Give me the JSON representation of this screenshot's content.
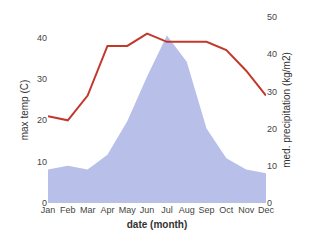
{
  "chart_data": {
    "type": "line",
    "categories": [
      "Jan",
      "Feb",
      "Mar",
      "Apr",
      "May",
      "Jun",
      "Jul",
      "Aug",
      "Sep",
      "Oct",
      "Nov",
      "Dec"
    ],
    "xlabel": "date (month)",
    "ylabel": "max temp (C)",
    "y2label": "med. precipitation (kg/m2)",
    "series": [
      {
        "type": "area",
        "axis": "y2",
        "color": "#b8bfe8",
        "values": [
          9,
          10,
          9,
          13,
          22,
          34,
          45,
          38,
          20,
          12,
          9,
          8
        ]
      },
      {
        "type": "line",
        "color": "#c0392b",
        "values": [
          21,
          20,
          26,
          38,
          38,
          41,
          39,
          39,
          39,
          37,
          32,
          26
        ]
      }
    ],
    "ylim": [
      0,
      45
    ],
    "yticks": [
      0,
      10,
      20,
      30,
      40
    ],
    "y2lim": [
      0,
      50
    ],
    "y2ticks": [
      0,
      10,
      20,
      30,
      40,
      50
    ],
    "grid": false
  }
}
